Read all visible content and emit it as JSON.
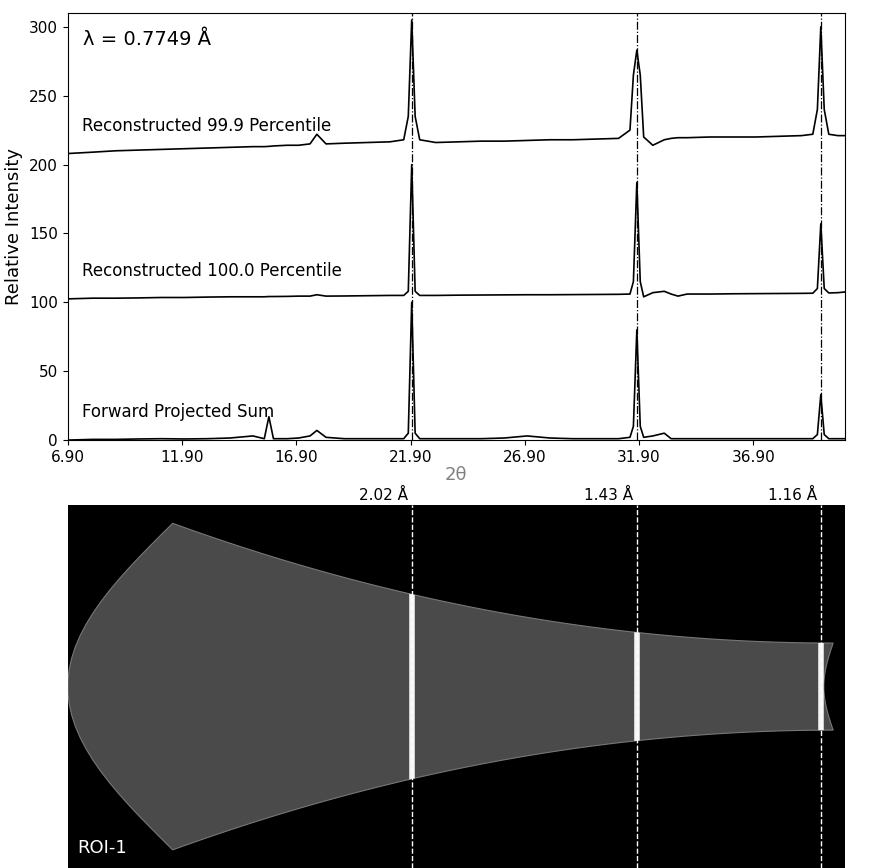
{
  "chart_data": {
    "type": "line",
    "xlabel": "2θ",
    "ylabel": "Relative Intensity",
    "annotations": [
      {
        "text": "λ = 0.7749 Å"
      }
    ],
    "x": [
      6.9,
      8,
      9,
      10,
      11,
      12,
      13,
      14,
      15,
      15.5,
      15.7,
      15.9,
      16.5,
      17,
      17.5,
      17.8,
      18.2,
      19,
      20,
      21,
      21.6,
      21.8,
      21.95,
      22.1,
      22.3,
      23,
      24,
      25,
      26,
      27,
      28,
      29,
      30,
      31,
      31.5,
      31.65,
      31.8,
      31.95,
      32.1,
      32.5,
      33,
      33.3,
      33.6,
      34,
      35,
      36,
      37,
      38,
      39,
      39.5,
      39.7,
      39.85,
      40,
      40.2,
      40.6,
      40.9
    ],
    "series": [
      {
        "name": "Reconstructed 99.9 Percentile",
        "color": "#000000",
        "values": [
          208,
          209,
          210,
          210.5,
          211,
          211.5,
          212,
          212.5,
          213,
          213,
          213.2,
          213.5,
          214,
          214,
          215,
          222,
          215,
          215.5,
          216,
          216.5,
          218,
          235,
          305,
          235,
          218,
          216,
          216.5,
          217,
          217,
          217.5,
          218,
          218,
          218.5,
          219,
          225,
          265,
          283,
          265,
          220,
          214,
          218,
          219,
          219.5,
          219.5,
          220,
          220,
          220,
          220.5,
          221,
          222,
          240,
          300,
          240,
          222,
          221,
          221
        ]
      },
      {
        "name": "Reconstructed 100.0 Percentile",
        "color": "#000000",
        "values": [
          102.5,
          103,
          103,
          103.2,
          103.5,
          103.5,
          103.8,
          104,
          104,
          104,
          104.2,
          104.2,
          104.3,
          104.5,
          104.5,
          105.5,
          104.5,
          104.6,
          104.8,
          105,
          105,
          108,
          200,
          108,
          105,
          105,
          105.2,
          105.3,
          105.4,
          105.5,
          105.5,
          105.6,
          105.7,
          105.8,
          106,
          115,
          187,
          115,
          104,
          107,
          108,
          106,
          104.5,
          106,
          106,
          106.2,
          106.3,
          106.4,
          106.5,
          106.6,
          110,
          157,
          110,
          106.8,
          107,
          107.5
        ]
      },
      {
        "name": "Forward Projected Sum",
        "color": "#000000",
        "values": [
          0,
          0.5,
          0.5,
          0.8,
          1,
          0.8,
          1,
          1.5,
          3,
          1,
          17,
          1,
          1,
          1.5,
          3,
          7,
          2,
          1,
          1,
          1,
          1,
          5,
          100,
          5,
          1,
          1,
          1,
          1,
          1.5,
          3,
          1.5,
          1,
          1,
          1,
          2,
          10,
          80,
          10,
          2,
          3,
          5,
          1,
          1,
          1,
          1,
          1,
          1,
          1,
          1,
          1,
          4,
          33,
          4,
          1,
          1,
          1
        ]
      }
    ],
    "xlim": [
      6.9,
      40.9
    ],
    "ylim": [
      0,
      310
    ],
    "xticks": [
      {
        "value": 6.9,
        "label": "6.90"
      },
      {
        "value": 11.9,
        "label": "11.90"
      },
      {
        "value": 16.9,
        "label": "16.90"
      },
      {
        "value": 21.9,
        "label": "21.90"
      },
      {
        "value": 26.9,
        "label": "26.90"
      },
      {
        "value": 31.9,
        "label": "31.90"
      },
      {
        "value": 36.9,
        "label": "36.90"
      }
    ],
    "yticks": [
      0,
      50,
      100,
      150,
      200,
      250,
      300
    ],
    "reference_lines": [
      {
        "x": 21.95,
        "label": "2.02 Å"
      },
      {
        "x": 31.8,
        "label": "1.43 Å"
      },
      {
        "x": 39.85,
        "label": "1.16 Å"
      }
    ],
    "grid": false
  },
  "image": {
    "label": "ROI-1"
  }
}
